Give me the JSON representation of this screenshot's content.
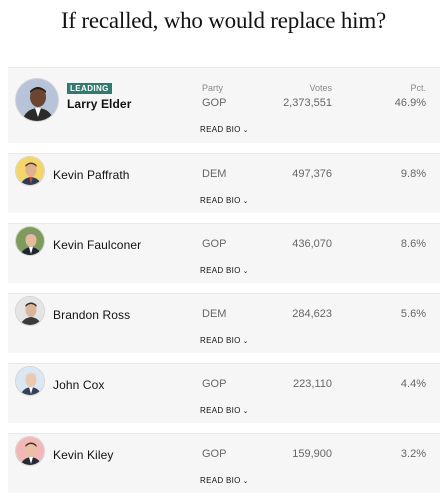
{
  "title": "If recalled, who would replace him?",
  "headers": {
    "party": "Party",
    "votes": "Votes",
    "pct": "Pct."
  },
  "badge": "LEADING",
  "read_bio": "READ BIO",
  "chevron": "⌄",
  "colors": {
    "badge": "#36786f",
    "card": "#f6f6f6",
    "dem": "#f5d66b",
    "gop": "#f2b7b7",
    "neutral": "#dbe7f3"
  },
  "candidates": [
    {
      "name": "Larry Elder",
      "party": "GOP",
      "votes": "2,373,551",
      "pct": "46.9%",
      "leading": true,
      "avatar_icon": "candidate-photo"
    },
    {
      "name": "Kevin Paffrath",
      "party": "DEM",
      "votes": "497,376",
      "pct": "9.8%",
      "leading": false,
      "avatar_icon": "candidate-photo"
    },
    {
      "name": "Kevin Faulconer",
      "party": "GOP",
      "votes": "436,070",
      "pct": "8.6%",
      "leading": false,
      "avatar_icon": "candidate-photo"
    },
    {
      "name": "Brandon Ross",
      "party": "DEM",
      "votes": "284,623",
      "pct": "5.6%",
      "leading": false,
      "avatar_icon": "candidate-photo"
    },
    {
      "name": "John Cox",
      "party": "GOP",
      "votes": "223,110",
      "pct": "4.4%",
      "leading": false,
      "avatar_icon": "candidate-photo"
    },
    {
      "name": "Kevin Kiley",
      "party": "GOP",
      "votes": "159,900",
      "pct": "3.2%",
      "leading": false,
      "avatar_icon": "candidate-photo"
    }
  ]
}
